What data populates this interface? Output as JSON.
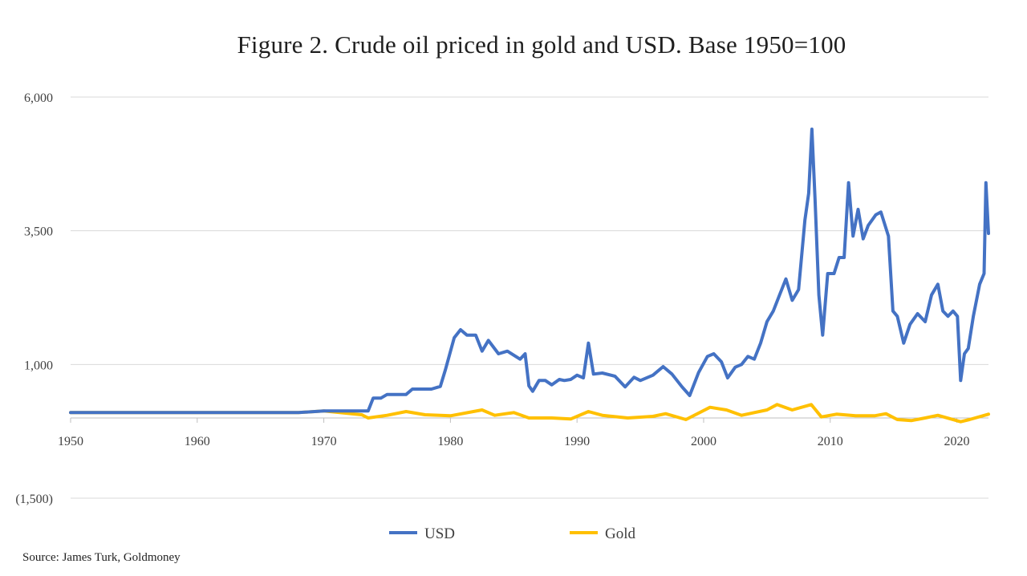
{
  "chart_data": {
    "type": "line",
    "title": "Figure 2. Crude oil priced in gold and USD. Base 1950=100",
    "xlabel": "",
    "ylabel": "",
    "xlim": [
      1950,
      2022.5
    ],
    "ylim": [
      -1500,
      6000
    ],
    "x_ticks": [
      1950,
      1960,
      1970,
      1980,
      1990,
      2000,
      2010,
      2020
    ],
    "x_tick_labels": [
      "1950",
      "1960",
      "1970",
      "1980",
      "1990",
      "2000",
      "2010",
      "2020"
    ],
    "y_ticks": [
      6000,
      3500,
      1000,
      -1500
    ],
    "y_tick_labels": [
      "6,000",
      "3,500",
      "1,000",
      "(1,500)"
    ],
    "grid": "horizontal",
    "legend": "bottom-center",
    "colors": {
      "USD": "#4472c4",
      "Gold": "#ffc000",
      "grid": "#d9d9d9"
    },
    "series": [
      {
        "name": "USD",
        "color": "#4472c4",
        "points": [
          [
            1950,
            100
          ],
          [
            1955,
            100
          ],
          [
            1960,
            100
          ],
          [
            1965,
            100
          ],
          [
            1968,
            100
          ],
          [
            1970,
            130
          ],
          [
            1973.5,
            130
          ],
          [
            1973.9,
            370
          ],
          [
            1974.5,
            370
          ],
          [
            1975,
            440
          ],
          [
            1976.5,
            440
          ],
          [
            1977,
            540
          ],
          [
            1978.5,
            540
          ],
          [
            1979.2,
            590
          ],
          [
            1979.6,
            900
          ],
          [
            1980.3,
            1500
          ],
          [
            1980.8,
            1650
          ],
          [
            1981.3,
            1550
          ],
          [
            1982,
            1550
          ],
          [
            1982.5,
            1250
          ],
          [
            1983,
            1450
          ],
          [
            1983.8,
            1200
          ],
          [
            1984.5,
            1250
          ],
          [
            1985.5,
            1100
          ],
          [
            1985.9,
            1200
          ],
          [
            1986.2,
            600
          ],
          [
            1986.5,
            500
          ],
          [
            1987,
            700
          ],
          [
            1987.5,
            700
          ],
          [
            1988,
            620
          ],
          [
            1988.6,
            720
          ],
          [
            1989,
            700
          ],
          [
            1989.5,
            720
          ],
          [
            1990,
            800
          ],
          [
            1990.5,
            750
          ],
          [
            1990.9,
            1400
          ],
          [
            1991.3,
            820
          ],
          [
            1992,
            840
          ],
          [
            1993,
            780
          ],
          [
            1993.8,
            580
          ],
          [
            1994.5,
            760
          ],
          [
            1995,
            700
          ],
          [
            1996,
            800
          ],
          [
            1996.8,
            960
          ],
          [
            1997.5,
            820
          ],
          [
            1998.3,
            580
          ],
          [
            1998.9,
            420
          ],
          [
            1999.6,
            850
          ],
          [
            2000.3,
            1150
          ],
          [
            2000.8,
            1200
          ],
          [
            2001.4,
            1050
          ],
          [
            2001.9,
            750
          ],
          [
            2002.5,
            950
          ],
          [
            2003,
            1000
          ],
          [
            2003.5,
            1150
          ],
          [
            2004,
            1100
          ],
          [
            2004.5,
            1400
          ],
          [
            2005,
            1800
          ],
          [
            2005.5,
            2000
          ],
          [
            2006,
            2300
          ],
          [
            2006.5,
            2600
          ],
          [
            2007,
            2200
          ],
          [
            2007.5,
            2400
          ],
          [
            2008,
            3700
          ],
          [
            2008.3,
            4200
          ],
          [
            2008.55,
            5400
          ],
          [
            2008.8,
            4100
          ],
          [
            2009.1,
            2300
          ],
          [
            2009.4,
            1550
          ],
          [
            2009.8,
            2700
          ],
          [
            2010.3,
            2700
          ],
          [
            2010.7,
            3000
          ],
          [
            2011.1,
            3000
          ],
          [
            2011.45,
            4400
          ],
          [
            2011.8,
            3400
          ],
          [
            2012.2,
            3900
          ],
          [
            2012.6,
            3350
          ],
          [
            2013,
            3600
          ],
          [
            2013.6,
            3800
          ],
          [
            2014,
            3850
          ],
          [
            2014.6,
            3400
          ],
          [
            2014.95,
            2000
          ],
          [
            2015.3,
            1900
          ],
          [
            2015.8,
            1400
          ],
          [
            2016.3,
            1750
          ],
          [
            2016.9,
            1950
          ],
          [
            2017.5,
            1800
          ],
          [
            2018,
            2300
          ],
          [
            2018.5,
            2500
          ],
          [
            2018.9,
            2000
          ],
          [
            2019.3,
            1900
          ],
          [
            2019.7,
            2000
          ],
          [
            2020.05,
            1900
          ],
          [
            2020.3,
            700
          ],
          [
            2020.6,
            1200
          ],
          [
            2020.9,
            1300
          ],
          [
            2021.3,
            1900
          ],
          [
            2021.8,
            2500
          ],
          [
            2022.15,
            2700
          ],
          [
            2022.3,
            4400
          ],
          [
            2022.5,
            3450
          ]
        ]
      },
      {
        "name": "Gold",
        "color": "#ffc000",
        "points": [
          [
            1950,
            100
          ],
          [
            1955,
            100
          ],
          [
            1960,
            100
          ],
          [
            1965,
            100
          ],
          [
            1968,
            100
          ],
          [
            1970,
            130
          ],
          [
            1973,
            60
          ],
          [
            1973.5,
            0
          ],
          [
            1975,
            50
          ],
          [
            1976.5,
            120
          ],
          [
            1978,
            60
          ],
          [
            1980,
            40
          ],
          [
            1982.5,
            150
          ],
          [
            1983.5,
            50
          ],
          [
            1985,
            100
          ],
          [
            1986.2,
            0
          ],
          [
            1988,
            0
          ],
          [
            1989.5,
            -20
          ],
          [
            1990.9,
            120
          ],
          [
            1992,
            50
          ],
          [
            1994,
            0
          ],
          [
            1996,
            30
          ],
          [
            1997,
            80
          ],
          [
            1998.6,
            -30
          ],
          [
            2000.5,
            200
          ],
          [
            2001.8,
            150
          ],
          [
            2003,
            50
          ],
          [
            2004,
            100
          ],
          [
            2005,
            150
          ],
          [
            2005.8,
            250
          ],
          [
            2007,
            150
          ],
          [
            2008.5,
            250
          ],
          [
            2009.3,
            20
          ],
          [
            2010.5,
            70
          ],
          [
            2012,
            40
          ],
          [
            2013.5,
            40
          ],
          [
            2014.4,
            80
          ],
          [
            2015.3,
            -30
          ],
          [
            2016.4,
            -50
          ],
          [
            2017.5,
            0
          ],
          [
            2018.5,
            50
          ],
          [
            2020.3,
            -70
          ],
          [
            2021,
            -30
          ],
          [
            2022.5,
            70
          ]
        ]
      }
    ]
  },
  "source": "Source: James Turk, Goldmoney"
}
